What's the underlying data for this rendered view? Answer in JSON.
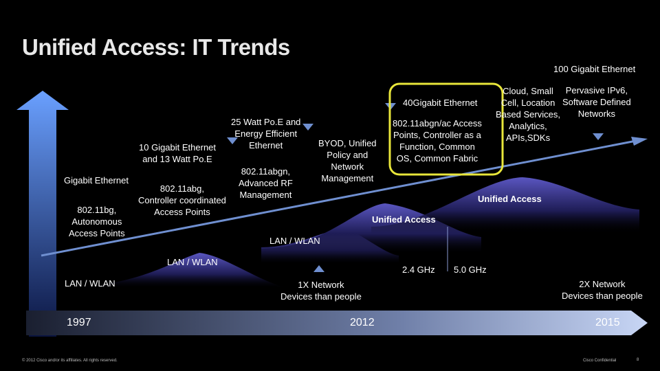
{
  "slide": {
    "title": "Unified Access: IT Trends",
    "footer_left": "© 2012 Cisco and/or its affiliates. All rights reserved.",
    "footer_right": "Cisco Confidential",
    "page_number": "8"
  },
  "timeline": {
    "years": [
      "1997",
      "2012",
      "2015"
    ]
  },
  "phases": {
    "lan_wlan_1": "LAN / WLAN",
    "lan_wlan_2": "LAN / WLAN",
    "lan_wlan_3": "LAN / WLAN",
    "unified_access_1": "Unified Access",
    "unified_access_2": "Unified Access"
  },
  "trends": {
    "gigabit_ethernet": "Gigabit Ethernet",
    "wlan_80211bg": "802.11bg,\nAutonomous\nAccess Points",
    "ten_gigabit": "10 Gigabit  Ethernet\nand 13 Watt Po.E",
    "wlan_80211abg": "802.11abg,\nController coordinated\nAccess Points",
    "poe_25w": "25 Watt Po.E and\nEnergy Efficient\nEthernet",
    "wlan_80211abgn": "802.11abgn,\nAdvanced RF\nManagement",
    "byod": "BYOD, Unified\nPolicy and\nNetwork\nManagement",
    "forty_gigabit": "40Gigabit  Ethernet",
    "wlan_80211ac": "802.11abgn/ac Access\nPoints, Controller as a\nFunction, Common\nOS, Common Fabric",
    "hundred_gigabit": "100 Gigabit  Ethernet",
    "cloud": "Cloud, Small\nCell, Location\nBased Services,\nAnalytics,\nAPIs,SDKs",
    "ipv6": "Pervasive IPv6,\nSoftware Defined\nNetworks",
    "ghz_24": "2.4 GHz",
    "ghz_50": "5.0 GHz",
    "devices_1x": "1X Network\nDevices than people",
    "devices_2x": "2X Network\nDevices than people"
  },
  "colors": {
    "arrow_blue": "#4a86e8",
    "trend_arrow": "#6f8fd0",
    "wave_purple": "#3d3a8c",
    "highlight": "#e8e63a",
    "timeline_bar": "#b8c8e8"
  }
}
